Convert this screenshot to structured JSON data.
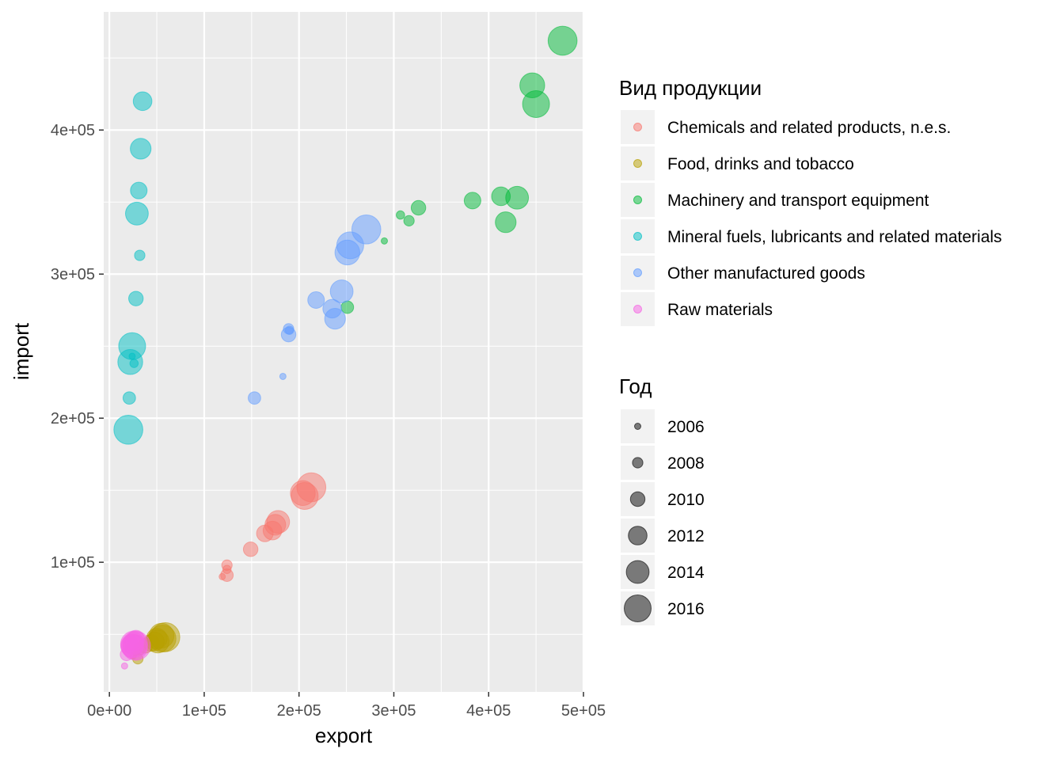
{
  "chart_data": {
    "type": "scatter",
    "xlabel": "export",
    "ylabel": "import",
    "xlim": [
      -6000,
      500000
    ],
    "ylim": [
      10000,
      482000
    ],
    "x_ticks": [
      0,
      100000,
      200000,
      300000,
      400000,
      500000
    ],
    "x_tick_labels": [
      "0e+00",
      "1e+05",
      "2e+05",
      "3e+05",
      "4e+05",
      "5e+05"
    ],
    "y_ticks": [
      100000,
      200000,
      300000,
      400000
    ],
    "y_tick_labels": [
      "1e+05",
      "2e+05",
      "3e+05",
      "4e+05"
    ],
    "grid": true,
    "legend_position": "right",
    "color_legend": {
      "title": "Вид продукции",
      "entries": [
        {
          "label": "Chemicals and related products, n.e.s.",
          "color": "#F8766D"
        },
        {
          "label": "Food, drinks and tobacco",
          "color": "#B79F00"
        },
        {
          "label": "Machinery and transport equipment",
          "color": "#00BA38"
        },
        {
          "label": "Mineral fuels, lubricants and related materials",
          "color": "#00BFC4"
        },
        {
          "label": "Other manufactured goods",
          "color": "#619CFF"
        },
        {
          "label": "Raw materials",
          "color": "#F564E3"
        }
      ]
    },
    "size_legend": {
      "title": "Год",
      "entries": [
        {
          "label": "2006",
          "year": 2006
        },
        {
          "label": "2008",
          "year": 2008
        },
        {
          "label": "2010",
          "year": 2010
        },
        {
          "label": "2012",
          "year": 2012
        },
        {
          "label": "2014",
          "year": 2014
        },
        {
          "label": "2016",
          "year": 2016
        }
      ]
    },
    "point_alpha": 0.5,
    "series": [
      {
        "name": "Chemicals and related products, n.e.s.",
        "points": [
          {
            "year": 2006,
            "x": 119000,
            "y": 90000
          },
          {
            "year": 2007,
            "x": 124000,
            "y": 95000
          },
          {
            "year": 2008,
            "x": 124000,
            "y": 98000
          },
          {
            "year": 2009,
            "x": 124000,
            "y": 91000
          },
          {
            "year": 2010,
            "x": 149000,
            "y": 109000
          },
          {
            "year": 2011,
            "x": 164000,
            "y": 120000
          },
          {
            "year": 2012,
            "x": 172000,
            "y": 122000
          },
          {
            "year": 2013,
            "x": 175000,
            "y": 126000
          },
          {
            "year": 2014,
            "x": 178000,
            "y": 128000
          },
          {
            "year": 2015,
            "x": 204000,
            "y": 148000
          },
          {
            "year": 2016,
            "x": 206000,
            "y": 146000
          },
          {
            "year": 2017,
            "x": 213000,
            "y": 152000
          }
        ]
      },
      {
        "name": "Food, drinks and tobacco",
        "points": [
          {
            "year": 2006,
            "x": 25000,
            "y": 35000
          },
          {
            "year": 2007,
            "x": 28000,
            "y": 38000
          },
          {
            "year": 2008,
            "x": 30000,
            "y": 33000
          },
          {
            "year": 2009,
            "x": 32000,
            "y": 40000
          },
          {
            "year": 2010,
            "x": 38000,
            "y": 42000
          },
          {
            "year": 2011,
            "x": 44000,
            "y": 44000
          },
          {
            "year": 2012,
            "x": 48000,
            "y": 45000
          },
          {
            "year": 2013,
            "x": 50000,
            "y": 47000
          },
          {
            "year": 2014,
            "x": 51000,
            "y": 45000
          },
          {
            "year": 2015,
            "x": 55000,
            "y": 49000
          },
          {
            "year": 2016,
            "x": 56000,
            "y": 47000
          },
          {
            "year": 2017,
            "x": 59000,
            "y": 48000
          }
        ]
      },
      {
        "name": "Machinery and transport equipment",
        "points": [
          {
            "year": 2006,
            "x": 290000,
            "y": 323000
          },
          {
            "year": 2007,
            "x": 307000,
            "y": 341000
          },
          {
            "year": 2008,
            "x": 316000,
            "y": 337000
          },
          {
            "year": 2009,
            "x": 251000,
            "y": 277000
          },
          {
            "year": 2010,
            "x": 326000,
            "y": 346000
          },
          {
            "year": 2011,
            "x": 383000,
            "y": 351000
          },
          {
            "year": 2012,
            "x": 413000,
            "y": 354000
          },
          {
            "year": 2013,
            "x": 418000,
            "y": 336000
          },
          {
            "year": 2014,
            "x": 430000,
            "y": 353000
          },
          {
            "year": 2015,
            "x": 446000,
            "y": 431000
          },
          {
            "year": 2016,
            "x": 450000,
            "y": 418000
          },
          {
            "year": 2017,
            "x": 478000,
            "y": 462000
          }
        ]
      },
      {
        "name": "Mineral fuels, lubricants and related materials",
        "points": [
          {
            "year": 2006,
            "x": 24000,
            "y": 243000
          },
          {
            "year": 2007,
            "x": 26000,
            "y": 238000
          },
          {
            "year": 2008,
            "x": 32000,
            "y": 313000
          },
          {
            "year": 2009,
            "x": 21000,
            "y": 214000
          },
          {
            "year": 2010,
            "x": 28000,
            "y": 283000
          },
          {
            "year": 2011,
            "x": 31000,
            "y": 358000
          },
          {
            "year": 2012,
            "x": 35000,
            "y": 420000
          },
          {
            "year": 2013,
            "x": 33000,
            "y": 387000
          },
          {
            "year": 2014,
            "x": 29000,
            "y": 342000
          },
          {
            "year": 2015,
            "x": 22000,
            "y": 239000
          },
          {
            "year": 2016,
            "x": 24000,
            "y": 250000
          },
          {
            "year": 2017,
            "x": 20000,
            "y": 192000
          }
        ]
      },
      {
        "name": "Other manufactured goods",
        "points": [
          {
            "year": 2006,
            "x": 183000,
            "y": 229000
          },
          {
            "year": 2007,
            "x": 190000,
            "y": 261000
          },
          {
            "year": 2008,
            "x": 189000,
            "y": 262000
          },
          {
            "year": 2009,
            "x": 153000,
            "y": 214000
          },
          {
            "year": 2010,
            "x": 189000,
            "y": 258000
          },
          {
            "year": 2011,
            "x": 218000,
            "y": 282000
          },
          {
            "year": 2012,
            "x": 235000,
            "y": 276000
          },
          {
            "year": 2013,
            "x": 238000,
            "y": 269000
          },
          {
            "year": 2014,
            "x": 245000,
            "y": 288000
          },
          {
            "year": 2015,
            "x": 251000,
            "y": 315000
          },
          {
            "year": 2016,
            "x": 254000,
            "y": 320000
          },
          {
            "year": 2017,
            "x": 271000,
            "y": 331000
          }
        ]
      },
      {
        "name": "Raw materials",
        "points": [
          {
            "year": 2006,
            "x": 16000,
            "y": 28000
          },
          {
            "year": 2007,
            "x": 21000,
            "y": 40000
          },
          {
            "year": 2008,
            "x": 25000,
            "y": 42000
          },
          {
            "year": 2009,
            "x": 18000,
            "y": 36000
          },
          {
            "year": 2010,
            "x": 22000,
            "y": 44000
          },
          {
            "year": 2011,
            "x": 28000,
            "y": 47000
          },
          {
            "year": 2012,
            "x": 26000,
            "y": 45000
          },
          {
            "year": 2013,
            "x": 25000,
            "y": 43000
          },
          {
            "year": 2014,
            "x": 24000,
            "y": 42000
          },
          {
            "year": 2015,
            "x": 27000,
            "y": 41000
          },
          {
            "year": 2016,
            "x": 26000,
            "y": 43000
          },
          {
            "year": 2017,
            "x": 28000,
            "y": 42000
          }
        ]
      }
    ]
  }
}
